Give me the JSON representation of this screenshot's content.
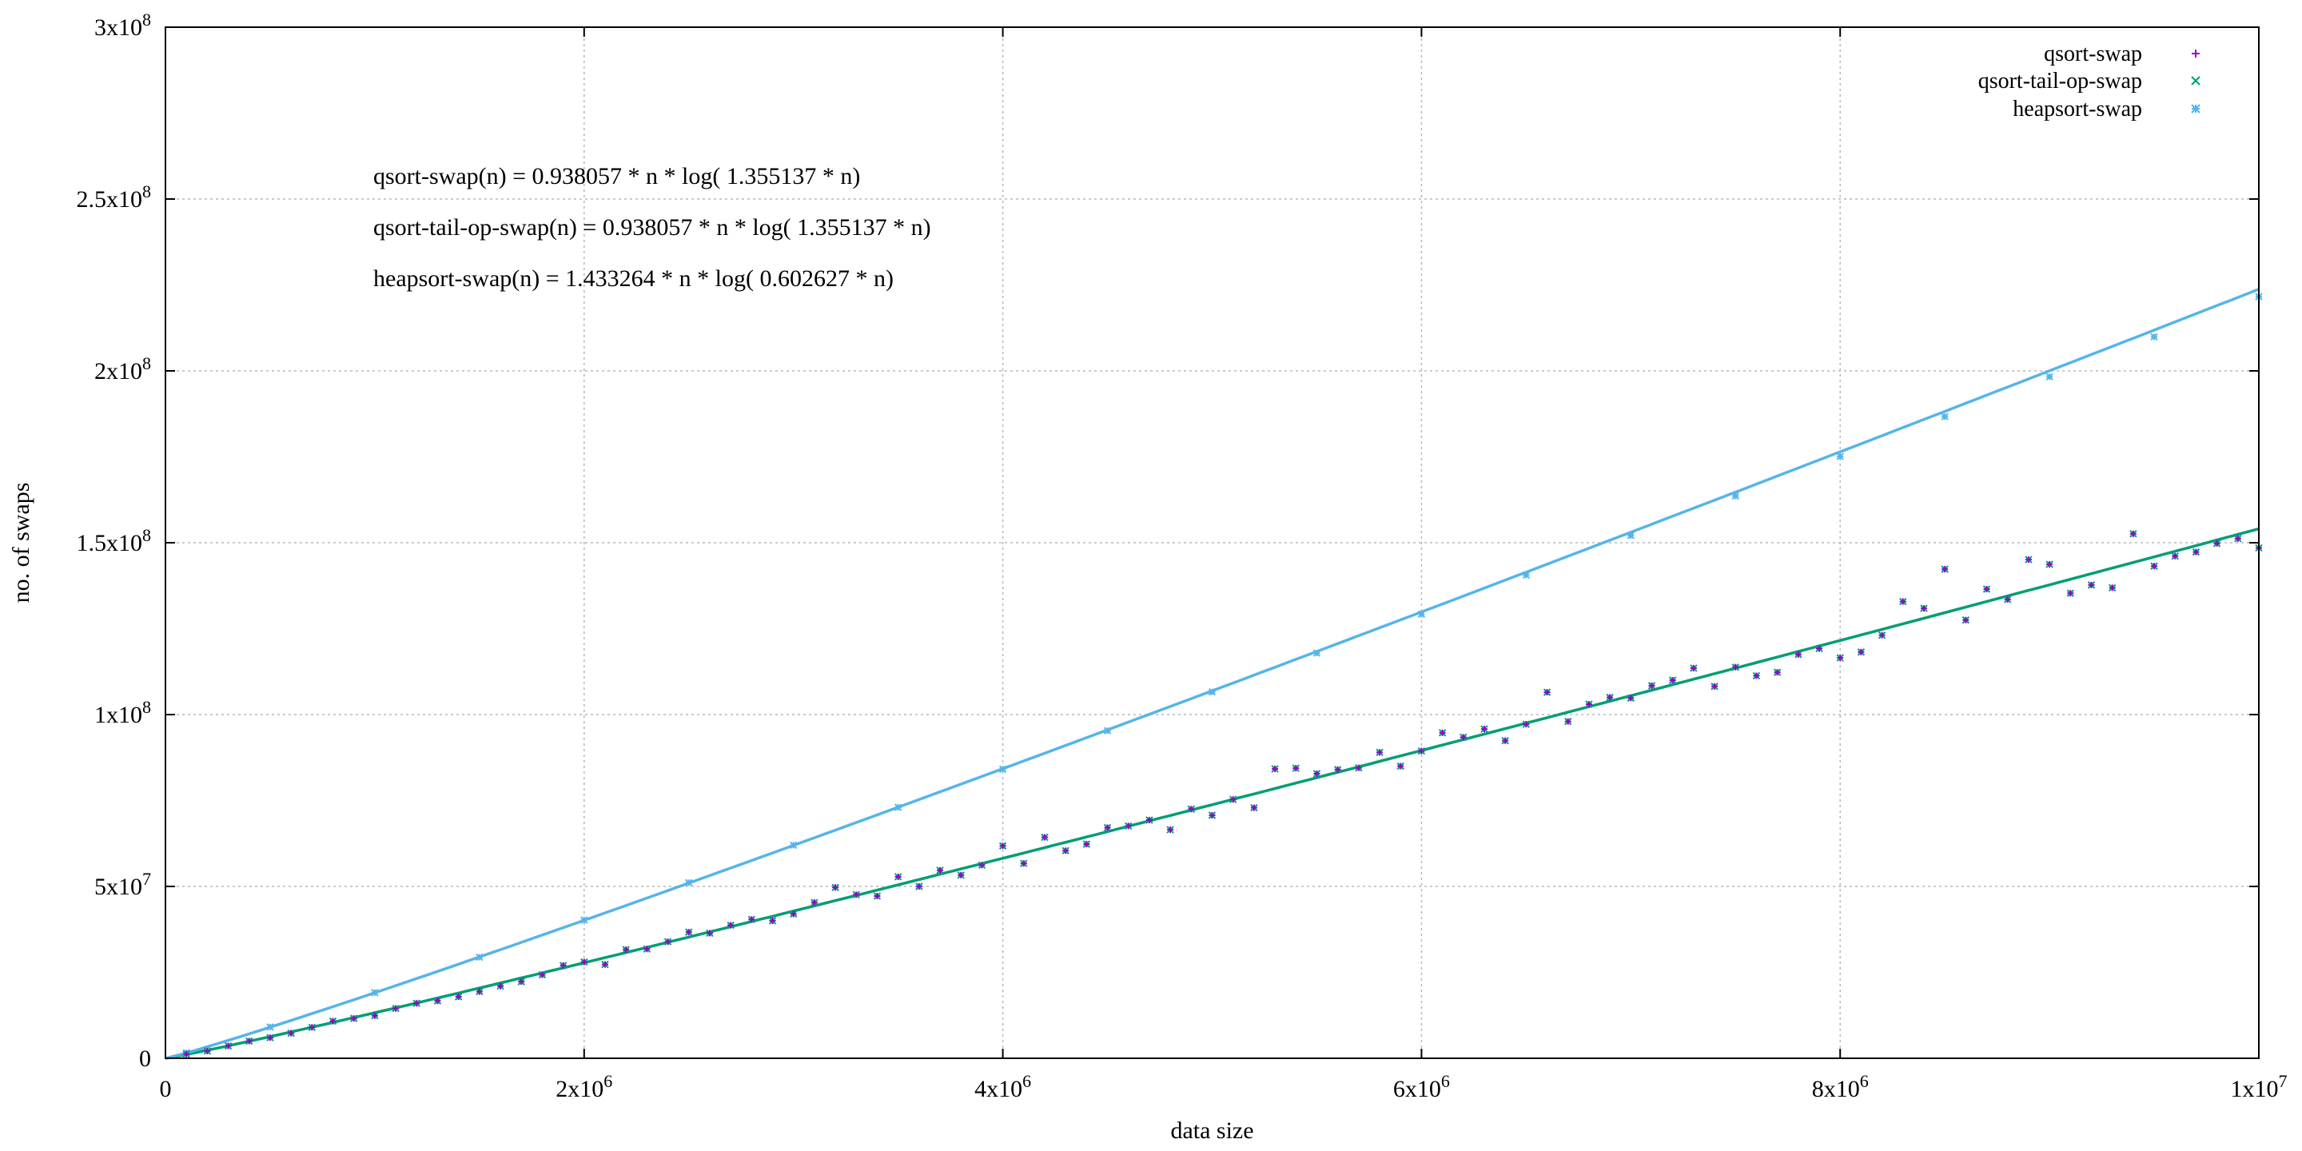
{
  "chart_data": {
    "type": "scatter",
    "xlabel": "data size",
    "ylabel": "no. of swaps",
    "xlim": [
      0,
      10000000
    ],
    "ylim": [
      0,
      300000000
    ],
    "grid": true,
    "legend_position": "top-right",
    "x_ticks": [
      {
        "value": 0,
        "mant": "0",
        "exp": ""
      },
      {
        "value": 2000000,
        "mant": "2x10",
        "exp": "6"
      },
      {
        "value": 4000000,
        "mant": "4x10",
        "exp": "6"
      },
      {
        "value": 6000000,
        "mant": "6x10",
        "exp": "6"
      },
      {
        "value": 8000000,
        "mant": "8x10",
        "exp": "6"
      },
      {
        "value": 10000000,
        "mant": "1x10",
        "exp": "7"
      }
    ],
    "y_ticks": [
      {
        "value": 0,
        "mant": "0",
        "exp": ""
      },
      {
        "value": 50000000,
        "mant": "5x10",
        "exp": "7"
      },
      {
        "value": 100000000,
        "mant": "1x10",
        "exp": "8"
      },
      {
        "value": 150000000,
        "mant": "1.5x10",
        "exp": "8"
      },
      {
        "value": 200000000,
        "mant": "2x10",
        "exp": "8"
      },
      {
        "value": 250000000,
        "mant": "2.5x10",
        "exp": "8"
      },
      {
        "value": 300000000,
        "mant": "3x10",
        "exp": "8"
      }
    ],
    "annotations": [
      "qsort-swap(n) = 0.938057 * n * log( 1.355137 * n)",
      "qsort-tail-op-swap(n) = 0.938057 * n * log( 1.355137 * n)",
      "heapsort-swap(n) = 1.433264 * n * log( 0.602627 * n)"
    ],
    "series": [
      {
        "name": "qsort-swap",
        "marker": "+",
        "color": "#9400d3",
        "x": [
          100000,
          200000,
          300000,
          400000,
          500000,
          600000,
          700000,
          800000,
          900000,
          1000000,
          1100000,
          1200000,
          1300000,
          1400000,
          1500000,
          1600000,
          1700000,
          1800000,
          1900000,
          2000000,
          2100000,
          2200000,
          2300000,
          2400000,
          2500000,
          2600000,
          2700000,
          2800000,
          2900000,
          3000000,
          3100000,
          3200000,
          3300000,
          3400000,
          3500000,
          3600000,
          3700000,
          3800000,
          3900000,
          4000000,
          4100000,
          4200000,
          4300000,
          4400000,
          4500000,
          4600000,
          4700000,
          4800000,
          4900000,
          5000000,
          5100000,
          5200000,
          5300000,
          5400000,
          5500000,
          5600000,
          5700000,
          5800000,
          5900000,
          6000000,
          6100000,
          6200000,
          6300000,
          6400000,
          6500000,
          6600000,
          6700000,
          6800000,
          6900000,
          7000000,
          7100000,
          7200000,
          7300000,
          7400000,
          7500000,
          7600000,
          7700000,
          7800000,
          7900000,
          8000000,
          8100000,
          8200000,
          8300000,
          8400000,
          8500000,
          8600000,
          8700000,
          8800000,
          8900000,
          9000000,
          9100000,
          9200000,
          9300000,
          9400000,
          9500000,
          9600000,
          9700000,
          9800000,
          9900000,
          10000000
        ],
        "y": [
          1200000,
          2100000,
          3600000,
          5000000,
          6000000,
          7300000,
          9000000,
          10800000,
          11600000,
          12400000,
          14500000,
          16000000,
          16700000,
          17900000,
          19400000,
          21000000,
          22300000,
          24300000,
          27000000,
          28000000,
          27300000,
          31600000,
          31800000,
          33900000,
          36700000,
          36400000,
          38700000,
          40400000,
          40000000,
          42000000,
          45300000,
          49700000,
          47600000,
          47200000,
          52800000,
          50000000,
          54700000,
          53300000,
          56200000,
          61800000,
          56700000,
          64300000,
          60400000,
          62300000,
          67100000,
          67600000,
          69300000,
          66500000,
          72500000,
          70700000,
          75300000,
          72900000,
          84200000,
          84400000,
          82800000,
          84000000,
          84500000,
          89000000,
          85000000,
          89400000,
          94700000,
          93400000,
          95800000,
          92400000,
          97200000,
          106500000,
          98000000,
          103000000,
          105000000,
          104800000,
          108400000,
          110000000,
          113500000,
          108200000,
          113800000,
          111300000,
          112300000,
          117500000,
          119200000,
          116500000,
          118200000,
          123100000,
          132900000,
          130900000,
          142300000,
          127500000,
          136500000,
          133500000,
          145100000,
          143700000,
          135300000,
          137700000,
          136900000,
          152600000,
          143200000,
          146100000,
          147300000,
          149800000,
          151200000,
          148500000
        ]
      },
      {
        "name": "qsort-tail-op-swap",
        "marker": "x",
        "color": "#009e73",
        "x": [
          100000,
          200000,
          300000,
          400000,
          500000,
          600000,
          700000,
          800000,
          900000,
          1000000,
          1100000,
          1200000,
          1300000,
          1400000,
          1500000,
          1600000,
          1700000,
          1800000,
          1900000,
          2000000,
          2100000,
          2200000,
          2300000,
          2400000,
          2500000,
          2600000,
          2700000,
          2800000,
          2900000,
          3000000,
          3100000,
          3200000,
          3300000,
          3400000,
          3500000,
          3600000,
          3700000,
          3800000,
          3900000,
          4000000,
          4100000,
          4200000,
          4300000,
          4400000,
          4500000,
          4600000,
          4700000,
          4800000,
          4900000,
          5000000,
          5100000,
          5200000,
          5300000,
          5400000,
          5500000,
          5600000,
          5700000,
          5800000,
          5900000,
          6000000,
          6100000,
          6200000,
          6300000,
          6400000,
          6500000,
          6600000,
          6700000,
          6800000,
          6900000,
          7000000,
          7100000,
          7200000,
          7300000,
          7400000,
          7500000,
          7600000,
          7700000,
          7800000,
          7900000,
          8000000,
          8100000,
          8200000,
          8300000,
          8400000,
          8500000,
          8600000,
          8700000,
          8800000,
          8900000,
          9000000,
          9100000,
          9200000,
          9300000,
          9400000,
          9500000,
          9600000,
          9700000,
          9800000,
          9900000,
          10000000
        ],
        "y": [
          1200000,
          2100000,
          3600000,
          5000000,
          6000000,
          7300000,
          9000000,
          10800000,
          11600000,
          12400000,
          14500000,
          16000000,
          16700000,
          17900000,
          19400000,
          21000000,
          22300000,
          24300000,
          27000000,
          28000000,
          27300000,
          31600000,
          31800000,
          33900000,
          36700000,
          36400000,
          38700000,
          40400000,
          40000000,
          42000000,
          45300000,
          49700000,
          47600000,
          47200000,
          52800000,
          50000000,
          54700000,
          53300000,
          56200000,
          61800000,
          56700000,
          64300000,
          60400000,
          62300000,
          67100000,
          67600000,
          69300000,
          66500000,
          72500000,
          70700000,
          75300000,
          72900000,
          84200000,
          84400000,
          82800000,
          84000000,
          84500000,
          89000000,
          85000000,
          89400000,
          94700000,
          93400000,
          95800000,
          92400000,
          97200000,
          106500000,
          98000000,
          103000000,
          105000000,
          104800000,
          108400000,
          110000000,
          113500000,
          108200000,
          113800000,
          111300000,
          112300000,
          117500000,
          119200000,
          116500000,
          118200000,
          123100000,
          132900000,
          130900000,
          142300000,
          127500000,
          136500000,
          133500000,
          145100000,
          143700000,
          135300000,
          137700000,
          136900000,
          152600000,
          143200000,
          146100000,
          147300000,
          149800000,
          151200000,
          148500000
        ]
      },
      {
        "name": "heapsort-swap",
        "marker": "*",
        "color": "#56b4e9",
        "x": [
          100000,
          500000,
          1000000,
          1500000,
          2000000,
          2500000,
          3000000,
          3500000,
          4000000,
          4500000,
          5000000,
          5500000,
          6000000,
          6500000,
          7000000,
          7500000,
          8000000,
          8500000,
          9000000,
          9500000,
          10000000
        ],
        "y": [
          1600000,
          9100000,
          19100000,
          29400000,
          40200000,
          51100000,
          62000000,
          73000000,
          84100000,
          95300000,
          106600000,
          117900000,
          129200000,
          140600000,
          152100000,
          163600000,
          175100000,
          186700000,
          198300000,
          209900000,
          221600000
        ]
      }
    ],
    "fit_lines": [
      {
        "series": "qsort-tail-op-swap",
        "color": "#009e73",
        "a": 0.938057,
        "b": 1.355137
      },
      {
        "series": "heapsort-swap",
        "color": "#56b4e9",
        "a": 1.433264,
        "b": 0.602627
      }
    ]
  }
}
